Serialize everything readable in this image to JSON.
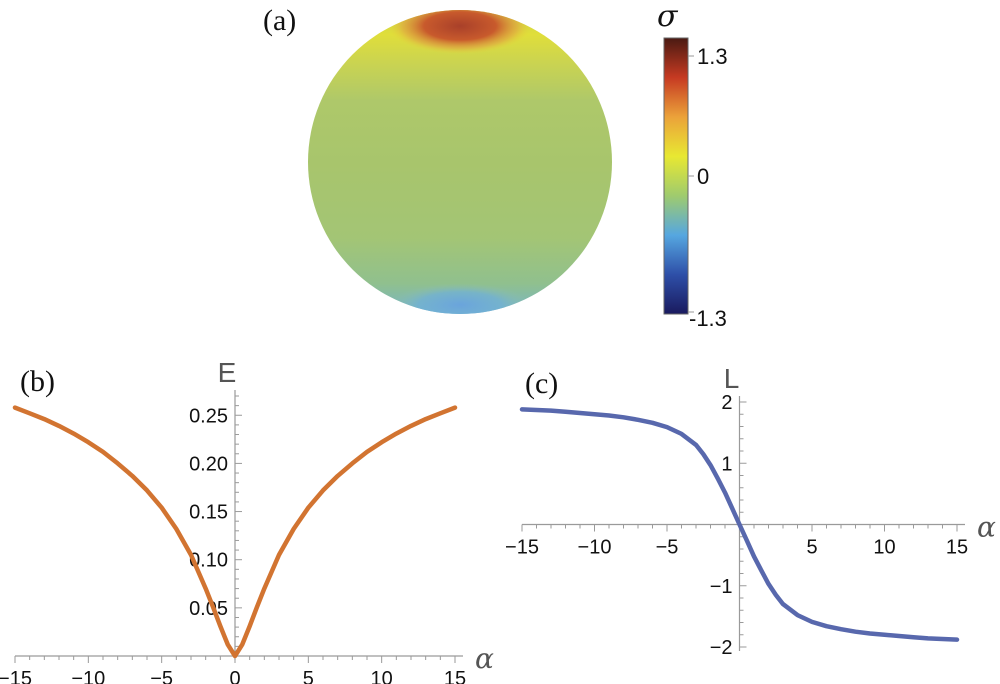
{
  "panels": {
    "a": {
      "label": "(a)"
    },
    "b": {
      "label": "(b)"
    },
    "c": {
      "label": "(c)"
    }
  },
  "colorbar": {
    "title": "σ",
    "ticks": [
      "1.3",
      "0",
      "-1.3"
    ],
    "range": [
      -1.3,
      1.3
    ],
    "colors": [
      "#1a1a5e",
      "#2e4fa8",
      "#56a7e0",
      "#9fcb6e",
      "#e8e832",
      "#eba23a",
      "#c63a22",
      "#4a1a12"
    ]
  },
  "sphere": {
    "top_color": "#b0452a",
    "middle_color": "#a9c66d",
    "bottom_color": "#66aee0"
  },
  "chart_data": [
    {
      "type": "line",
      "panel": "b",
      "ylabel": "E",
      "xlabel": "α",
      "xlim": [
        -15,
        15
      ],
      "ylim": [
        0,
        0.27
      ],
      "x_ticks": [
        -15,
        -10,
        -5,
        0,
        5,
        10,
        15
      ],
      "x_tick_labels": [
        "−15",
        "−10",
        "−5",
        "0",
        "5",
        "10",
        "15"
      ],
      "y_ticks": [
        0.05,
        0.1,
        0.15,
        0.2,
        0.25
      ],
      "y_tick_labels": [
        "0.05",
        "0.10",
        "0.15",
        "0.20",
        "0.25"
      ],
      "color": "#d27431",
      "series": [
        {
          "x": [
            -15,
            -14,
            -13,
            -12,
            -11,
            -10,
            -9,
            -8,
            -7,
            -6,
            -5,
            -4,
            -3,
            -2,
            -1.5,
            -1,
            -0.5,
            0,
            0.5,
            1,
            1.5,
            2,
            3,
            4,
            5,
            6,
            7,
            8,
            9,
            10,
            11,
            12,
            13,
            14,
            15
          ],
          "y": [
            0.258,
            0.252,
            0.246,
            0.239,
            0.231,
            0.222,
            0.212,
            0.2,
            0.187,
            0.172,
            0.154,
            0.132,
            0.105,
            0.07,
            0.051,
            0.031,
            0.012,
            0.0,
            0.012,
            0.031,
            0.051,
            0.07,
            0.105,
            0.132,
            0.154,
            0.172,
            0.187,
            0.2,
            0.212,
            0.222,
            0.231,
            0.239,
            0.246,
            0.252,
            0.258
          ]
        }
      ]
    },
    {
      "type": "line",
      "panel": "c",
      "ylabel": "L",
      "xlabel": "α",
      "xlim": [
        -15,
        15
      ],
      "ylim": [
        -2,
        2
      ],
      "x_ticks": [
        -15,
        -10,
        -5,
        0,
        5,
        10,
        15
      ],
      "x_tick_labels": [
        "−15",
        "−10",
        "−5",
        "",
        "5",
        "10",
        "15"
      ],
      "y_ticks": [
        -2,
        -1,
        1,
        2
      ],
      "y_tick_labels": [
        "−2",
        "−1",
        "1",
        "2"
      ],
      "color": "#5868ad",
      "series": [
        {
          "x": [
            -15,
            -14,
            -13,
            -12,
            -11,
            -10,
            -9,
            -8,
            -7,
            -6,
            -5,
            -4,
            -3,
            -2.5,
            -2,
            -1.5,
            -1,
            -0.5,
            0,
            0.5,
            1,
            1.5,
            2,
            2.5,
            3,
            4,
            5,
            6,
            7,
            8,
            9,
            10,
            11,
            12,
            13,
            14,
            15
          ],
          "y": [
            1.88,
            1.87,
            1.86,
            1.84,
            1.82,
            1.8,
            1.78,
            1.75,
            1.71,
            1.66,
            1.59,
            1.48,
            1.3,
            1.15,
            0.97,
            0.75,
            0.52,
            0.26,
            0.0,
            -0.26,
            -0.52,
            -0.75,
            -0.97,
            -1.15,
            -1.3,
            -1.48,
            -1.59,
            -1.66,
            -1.71,
            -1.75,
            -1.78,
            -1.8,
            -1.82,
            -1.84,
            -1.86,
            -1.87,
            -1.88
          ]
        }
      ]
    }
  ]
}
